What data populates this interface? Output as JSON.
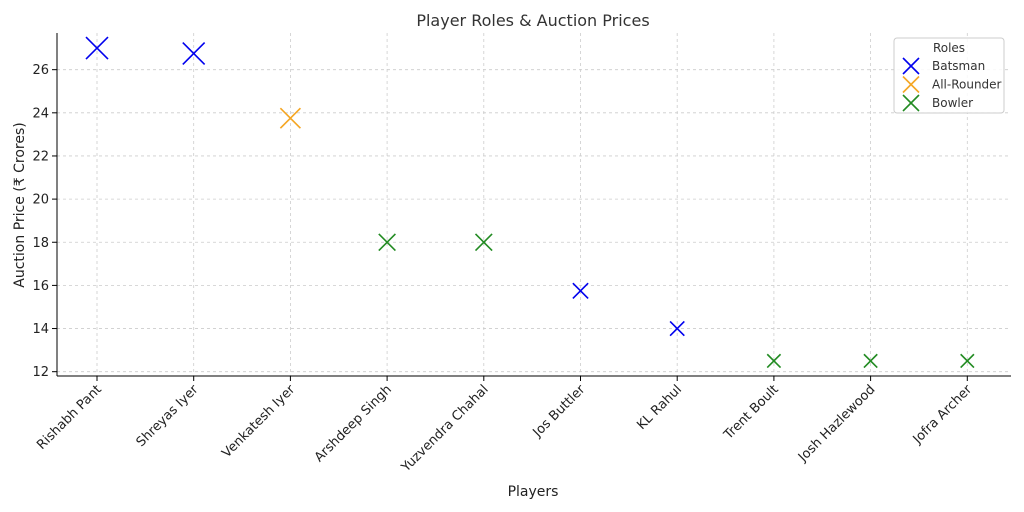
{
  "chart_data": {
    "type": "scatter",
    "title": "Player Roles & Auction Prices",
    "xlabel": "Players",
    "ylabel": "Auction Price (₹ Crores)",
    "categories": [
      "Rishabh Pant",
      "Shreyas Iyer",
      "Venkatesh Iyer",
      "Arshdeep Singh",
      "Yuzvendra Chahal",
      "Jos Buttler",
      "KL Rahul",
      "Trent Boult",
      "Josh Hazlewood",
      "Jofra Archer"
    ],
    "ylim": [
      11.8,
      27.7
    ],
    "yticks": [
      12,
      14,
      16,
      18,
      20,
      22,
      24,
      26
    ],
    "grid": true,
    "legend": {
      "title": "Roles",
      "placement": "top-right"
    },
    "series": [
      {
        "name": "Batsman",
        "color": "#0000ee",
        "marker": "x",
        "points": [
          {
            "x": "Rishabh Pant",
            "y": 27.0
          },
          {
            "x": "Shreyas Iyer",
            "y": 26.75
          },
          {
            "x": "Jos Buttler",
            "y": 15.75
          },
          {
            "x": "KL Rahul",
            "y": 14.0
          }
        ]
      },
      {
        "name": "All-Rounder",
        "color": "#f5a623",
        "marker": "x",
        "points": [
          {
            "x": "Venkatesh Iyer",
            "y": 23.75
          }
        ]
      },
      {
        "name": "Bowler",
        "color": "#228b22",
        "marker": "x",
        "points": [
          {
            "x": "Arshdeep Singh",
            "y": 18.0
          },
          {
            "x": "Yuzvendra Chahal",
            "y": 18.0
          },
          {
            "x": "Trent Boult",
            "y": 12.5
          },
          {
            "x": "Josh Hazlewood",
            "y": 12.5
          },
          {
            "x": "Jofra Archer",
            "y": 12.5
          }
        ]
      }
    ]
  }
}
